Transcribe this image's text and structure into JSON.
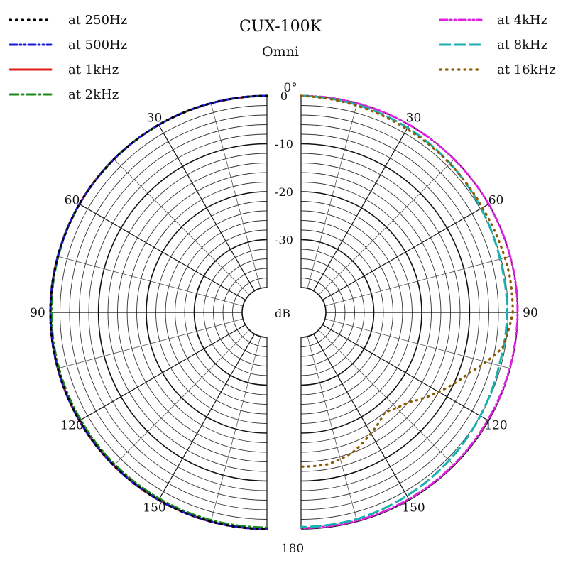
{
  "chart_data": {
    "type": "polar",
    "title": "CUX-100K",
    "subtitle": "Omni",
    "radial_unit": "dB",
    "radial_range": [
      -40,
      0
    ],
    "radial_labels": [
      "0",
      "-10",
      "-20",
      "-30"
    ],
    "radial_label_values": [
      0,
      -10,
      -20,
      -30
    ],
    "angle_labels": [
      "0°",
      "30",
      "60",
      "90",
      "120",
      "150",
      "180"
    ],
    "angle_label_values": [
      0,
      30,
      60,
      90,
      120,
      150,
      180
    ],
    "left_half": {
      "series": [
        {
          "name": "at 1kHz",
          "color": "#e01b1b",
          "style": "solid",
          "angles": [
            0,
            30,
            60,
            90,
            120,
            150,
            180
          ],
          "values": [
            0,
            0,
            0,
            0,
            0,
            0,
            0
          ]
        },
        {
          "name": "at 2kHz",
          "color": "#1a8a1a",
          "style": "dashdot",
          "angles": [
            0,
            30,
            60,
            90,
            120,
            150,
            180
          ],
          "values": [
            0,
            0,
            0,
            -0.2,
            -0.3,
            -0.3,
            -0.3
          ]
        },
        {
          "name": "at 500Hz",
          "color": "#1a1ad0",
          "style": "dashdotdot",
          "angles": [
            0,
            30,
            60,
            90,
            120,
            150,
            180
          ],
          "values": [
            0,
            0,
            0,
            0,
            0,
            0,
            0
          ]
        },
        {
          "name": "at 250Hz",
          "color": "#000000",
          "style": "dotted",
          "angles": [
            0,
            30,
            60,
            90,
            120,
            150,
            180
          ],
          "values": [
            0,
            0,
            0,
            0,
            0,
            0,
            0
          ]
        }
      ]
    },
    "right_half": {
      "series": [
        {
          "name": "at 4kHz",
          "color": "#e020e0",
          "style": "dashdotdot",
          "angles": [
            0,
            30,
            60,
            90,
            120,
            150,
            180
          ],
          "values": [
            0,
            0,
            0,
            0,
            -0.2,
            -0.2,
            -0.2
          ]
        },
        {
          "name": "at 8kHz",
          "color": "#1ab0b0",
          "style": "dashed",
          "angles": [
            0,
            15,
            30,
            45,
            60,
            75,
            90,
            105,
            120,
            135,
            150,
            165,
            180
          ],
          "values": [
            0,
            -0.3,
            -0.7,
            -1.2,
            -1.8,
            -2.2,
            -2.2,
            -2.4,
            -2.0,
            -1.5,
            -1.0,
            -0.5,
            -0.4
          ]
        },
        {
          "name": "at 16kHz",
          "color": "#8b5a00",
          "style": "dotted",
          "angles": [
            0,
            15,
            30,
            45,
            60,
            70,
            80,
            90,
            100,
            110,
            120,
            130,
            140,
            150,
            160,
            170,
            180
          ],
          "values": [
            0,
            -0.5,
            -1.0,
            -1.3,
            -1.5,
            -1.3,
            -1.0,
            -1.0,
            -2.5,
            -8,
            -12,
            -16,
            -18,
            -16,
            -14,
            -13,
            -13
          ]
        }
      ]
    },
    "legend": {
      "left": [
        {
          "label": "at 250Hz",
          "color": "#000000",
          "style": "dotted"
        },
        {
          "label": "at 500Hz",
          "color": "#1a1ad0",
          "style": "dashdotdot"
        },
        {
          "label": "at 1kHz",
          "color": "#e01b1b",
          "style": "solid"
        },
        {
          "label": "at 2kHz",
          "color": "#1a8a1a",
          "style": "dashdot"
        }
      ],
      "right": [
        {
          "label": "at 4kHz",
          "color": "#e020e0",
          "style": "dashdotdot"
        },
        {
          "label": "at 8kHz",
          "color": "#1ab0b0",
          "style": "dashed"
        },
        {
          "label": "at 16kHz",
          "color": "#8b5a00",
          "style": "dotted"
        }
      ]
    },
    "grid": true
  }
}
